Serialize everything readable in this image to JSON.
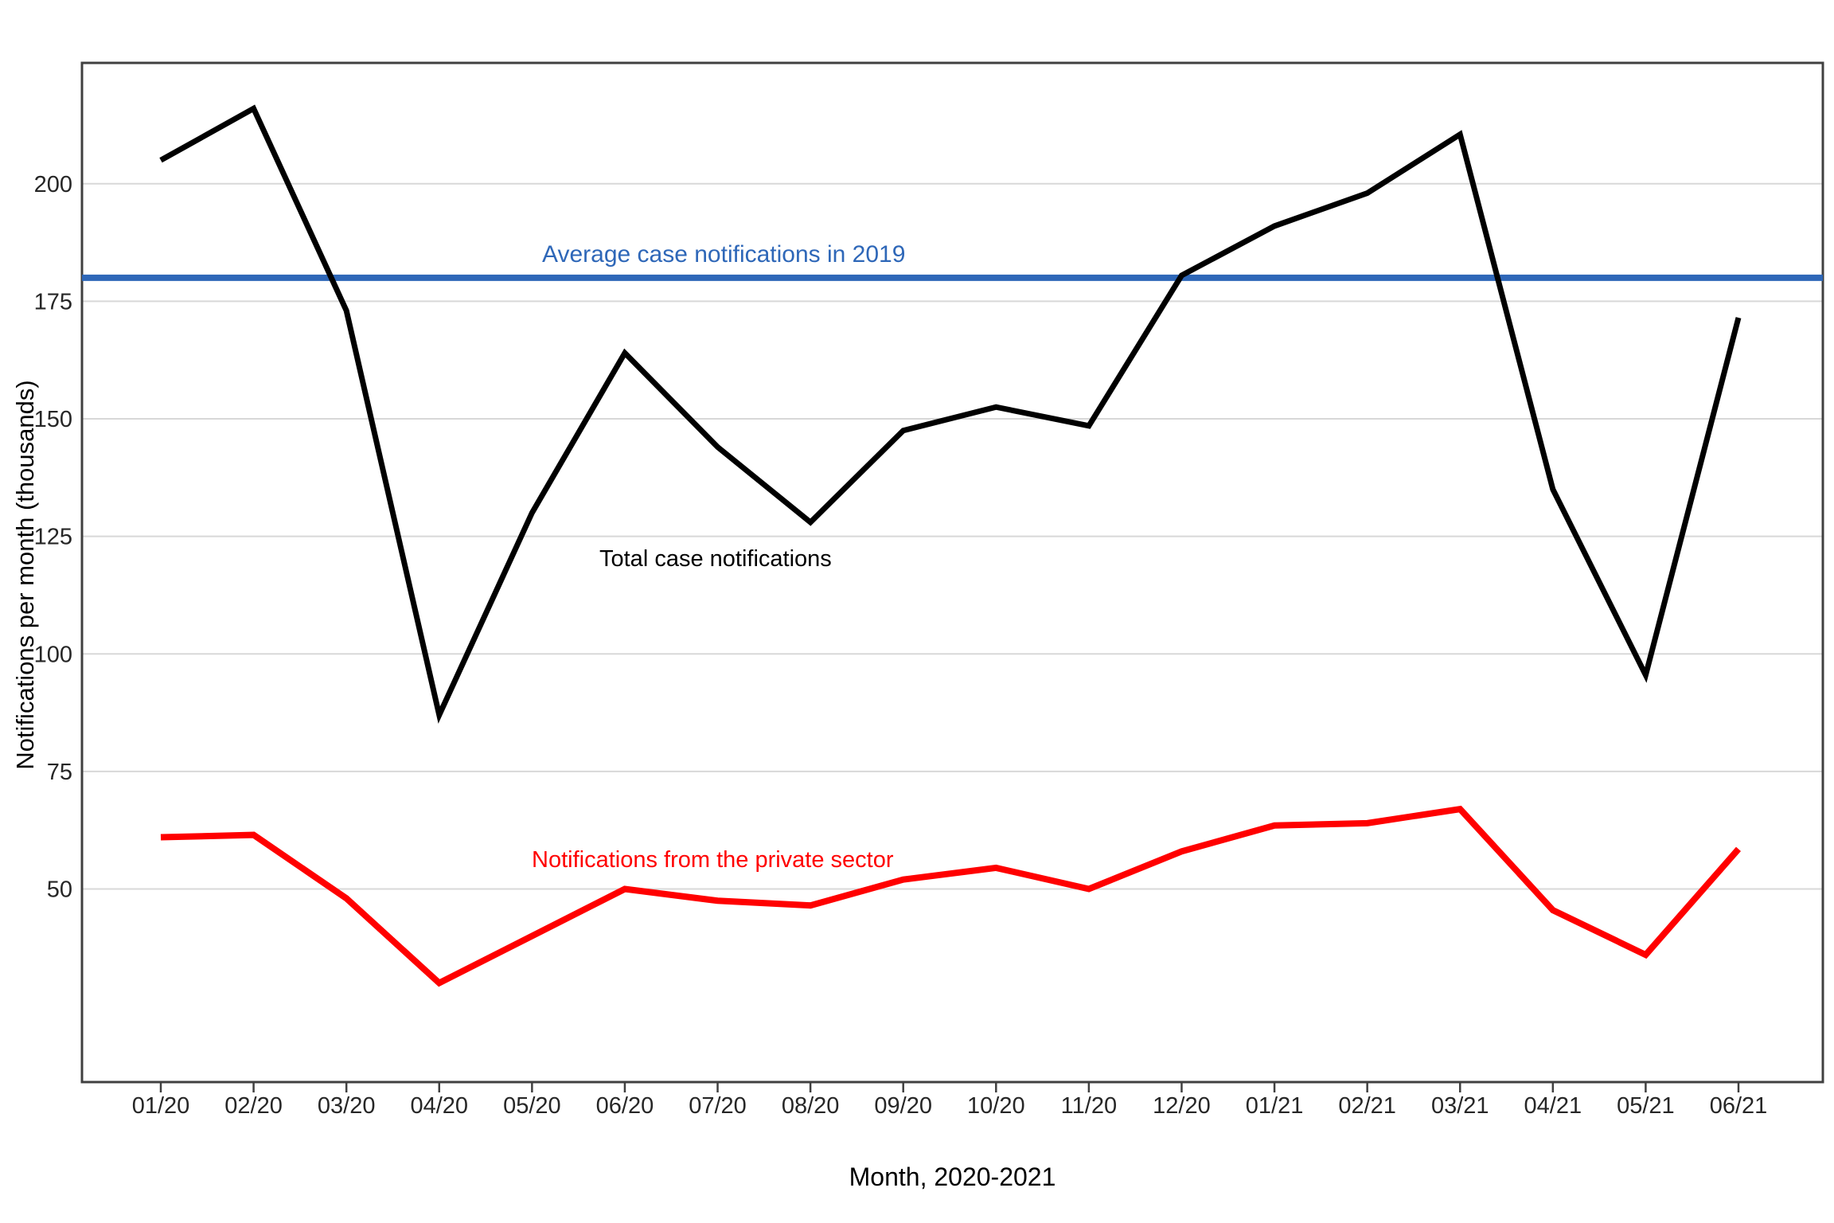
{
  "chart_data": {
    "type": "line",
    "title": "",
    "categories": [
      "01/20",
      "02/20",
      "03/20",
      "04/20",
      "05/20",
      "06/20",
      "07/20",
      "08/20",
      "09/20",
      "10/20",
      "11/20",
      "12/20",
      "01/21",
      "02/21",
      "03/21",
      "04/21",
      "05/21",
      "06/21"
    ],
    "series": [
      {
        "name": "Total case notifications",
        "color": "#000000",
        "line_width": 7,
        "values": [
          205,
          216,
          173,
          87,
          130,
          164,
          144,
          128,
          147.5,
          152.5,
          148.5,
          180.5,
          191,
          198,
          210.5,
          135,
          95.5,
          171.5
        ]
      },
      {
        "name": "Notifications from the private sector",
        "color": "#FF0000",
        "line_width": 8,
        "values": [
          61,
          61.5,
          48,
          30,
          40,
          50,
          47.5,
          46.5,
          52,
          54.5,
          50,
          58,
          63.5,
          64,
          67,
          45.5,
          36,
          58.5
        ]
      }
    ],
    "reference_line": {
      "label": "Average case notifications in 2019",
      "value": 180,
      "color": "#2E67B8",
      "line_width": 8
    },
    "xlabel": "Month, 2020-2021",
    "ylabel": "Notifications per month (thousands)",
    "ylim": [
      9,
      226
    ],
    "yticks": [
      50,
      75,
      100,
      125,
      150,
      175,
      200
    ],
    "grid": "horizontal gridlines at each y tick",
    "legend": "inline text annotations next to lines"
  },
  "colors": {
    "background": "#FFFFFF",
    "gridline": "#D8D8D8",
    "axis_border": "#404040",
    "tick_label": "#262626",
    "total_series": "#000000",
    "private_series": "#FF0000",
    "reference": "#2E67B8"
  }
}
